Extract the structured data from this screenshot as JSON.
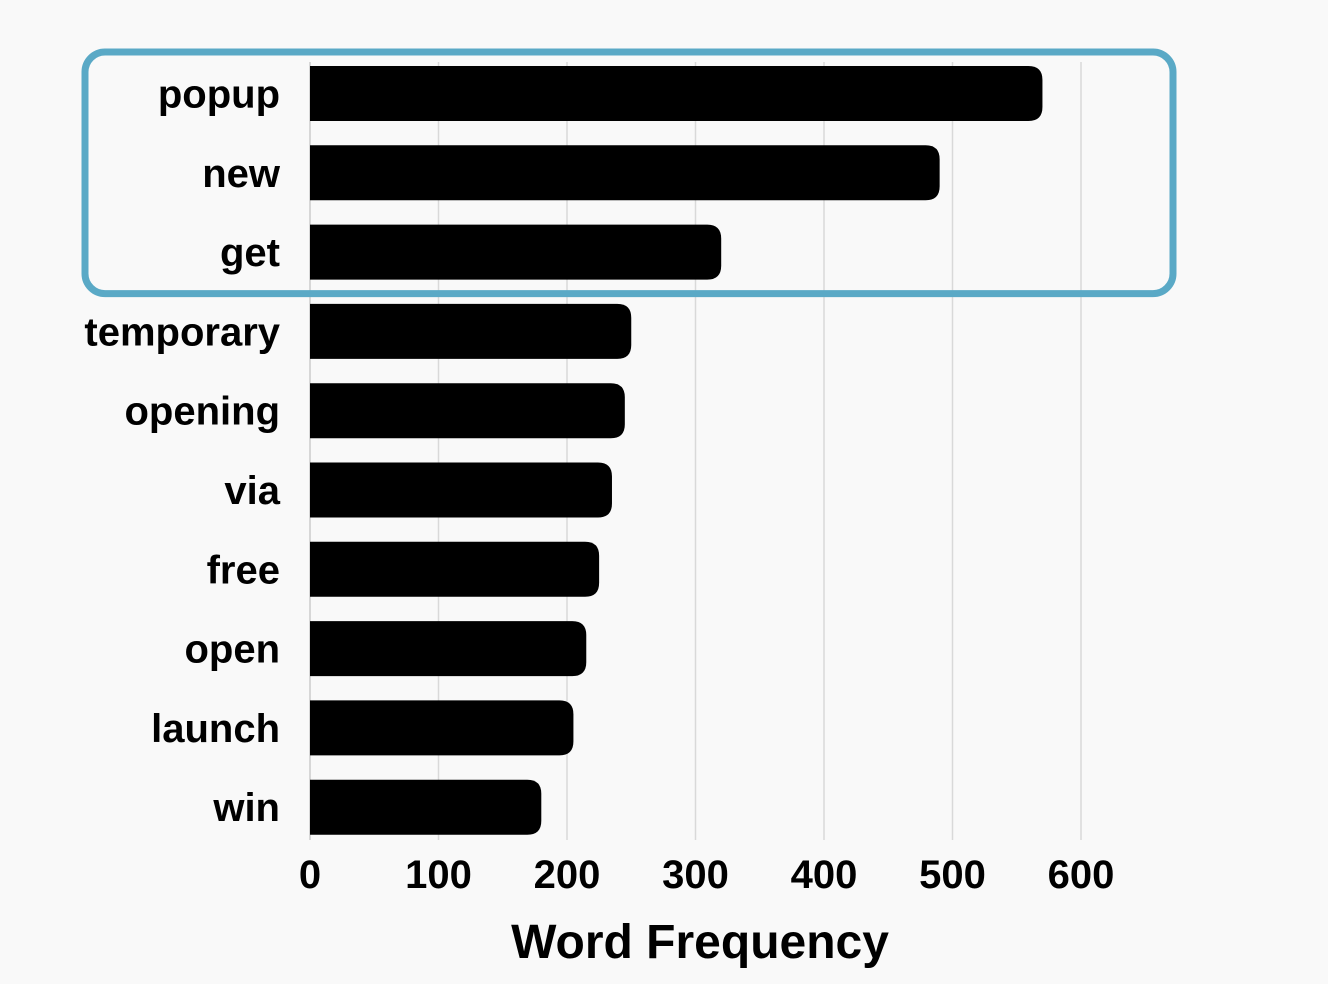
{
  "chart_data": {
    "type": "bar",
    "orientation": "horizontal",
    "categories": [
      "popup",
      "new",
      "get",
      "temporary",
      "opening",
      "via",
      "free",
      "open",
      "launch",
      "win"
    ],
    "values": [
      570,
      490,
      320,
      250,
      245,
      235,
      225,
      215,
      205,
      180
    ],
    "title": "",
    "xlabel": "Word Frequency",
    "ylabel": "",
    "xlim": [
      0,
      680
    ],
    "xticks": [
      "0",
      "100",
      "200",
      "300",
      "400",
      "500",
      "600"
    ],
    "grid": "vertical",
    "bar_color": "#000000",
    "gridline_color": "#d9d9d9",
    "highlight": {
      "categories": [
        "popup",
        "new",
        "get"
      ],
      "color": "#5aa9c6"
    }
  }
}
